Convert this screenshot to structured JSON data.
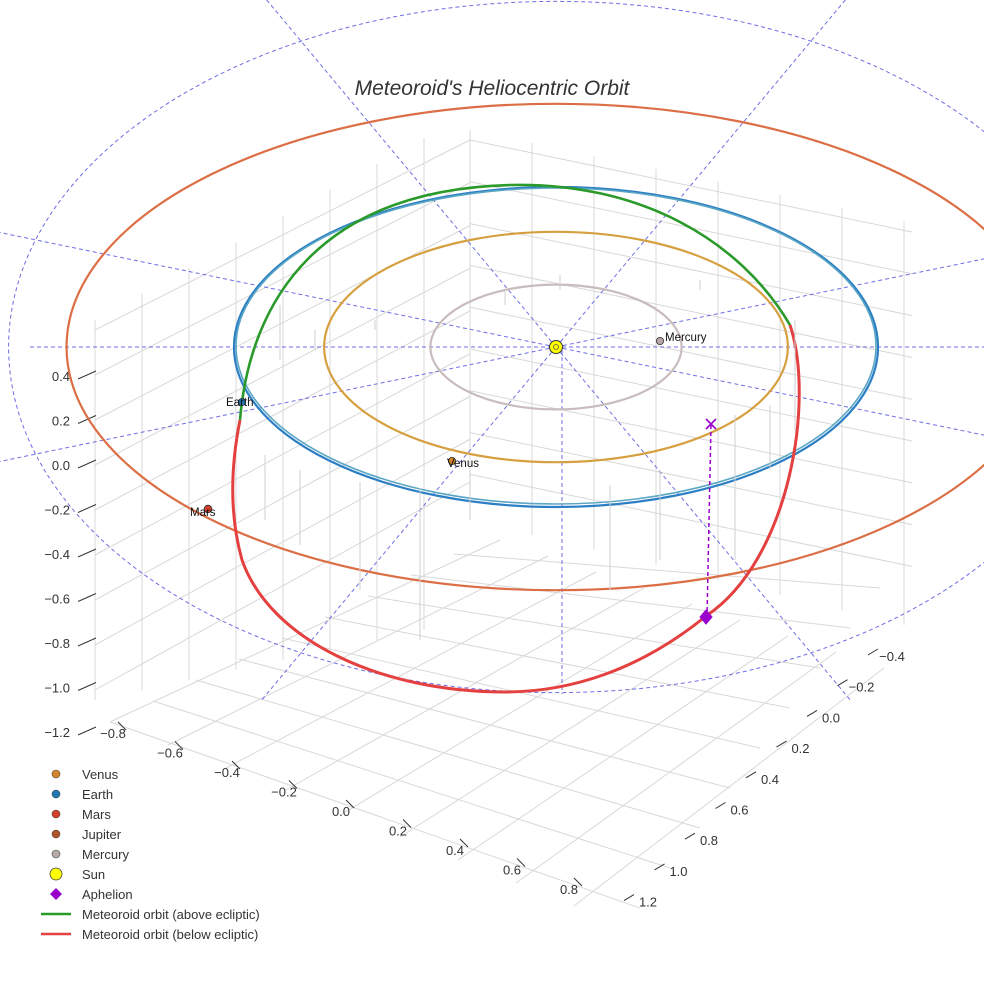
{
  "chart_data": {
    "type": "3d-line",
    "title": "Meteoroid's Heliocentric Orbit",
    "x_ticks": [
      "−0.8",
      "−0.6",
      "−0.4",
      "−0.2",
      "0.0",
      "0.2",
      "0.4",
      "0.6",
      "0.8"
    ],
    "y_ticks": [
      "−0.4",
      "−0.2",
      "0.0",
      "0.2",
      "0.4",
      "0.6",
      "0.8",
      "1.0",
      "1.2"
    ],
    "z_ticks": [
      "0.4",
      "0.2",
      "0.0",
      "−0.2",
      "−0.4",
      "−0.6",
      "−0.8",
      "−1.0",
      "−1.2"
    ],
    "grid": true,
    "legend_position": "bottom-left",
    "bodies": [
      {
        "name": "Venus",
        "label": "Venus",
        "color": "#d4852b"
      },
      {
        "name": "Earth",
        "label": "Earth",
        "color": "#1f77b4"
      },
      {
        "name": "Mars",
        "label": "Mars",
        "color": "#d2402a"
      },
      {
        "name": "Jupiter",
        "label": "",
        "color": "#b0542a"
      },
      {
        "name": "Mercury",
        "label": "Mercury",
        "color": "#b8a8a8"
      },
      {
        "name": "Sun",
        "label": "",
        "color": "#ffff00"
      }
    ],
    "planet_orbits": [
      {
        "name": "Mercury",
        "radius": 0.39,
        "color": "#c8bcbc"
      },
      {
        "name": "Venus",
        "radius": 0.72,
        "color": "#d6a040"
      },
      {
        "name": "Earth",
        "radius": 1.0,
        "color": "#2c7fc4"
      },
      {
        "name": "Mars",
        "radius": 1.52,
        "color": "#dc6e45"
      }
    ],
    "series": [
      {
        "name": "Meteoroid orbit (above ecliptic)",
        "color": "#2a9a2a"
      },
      {
        "name": "Meteoroid orbit (below ecliptic)",
        "color": "#e54040"
      }
    ],
    "aphelion": {
      "name": "Aphelion",
      "color": "#9a00cc"
    }
  },
  "legend": [
    {
      "label": "Venus",
      "kind": "dot",
      "color": "#d4852b"
    },
    {
      "label": "Earth",
      "kind": "dot",
      "color": "#1f77b4"
    },
    {
      "label": "Mars",
      "kind": "dot",
      "color": "#d2402a"
    },
    {
      "label": "Jupiter",
      "kind": "dot",
      "color": "#b0542a"
    },
    {
      "label": "Mercury",
      "kind": "dot",
      "color": "#b8a8a8"
    },
    {
      "label": "Sun",
      "kind": "bigdot",
      "color": "#ffff00"
    },
    {
      "label": "Aphelion",
      "kind": "diamond",
      "color": "#9a00cc"
    },
    {
      "label": "Meteoroid orbit (above ecliptic)",
      "kind": "line",
      "color": "#2a9a2a"
    },
    {
      "label": "Meteoroid orbit (below ecliptic)",
      "kind": "line",
      "color": "#e54040"
    }
  ]
}
